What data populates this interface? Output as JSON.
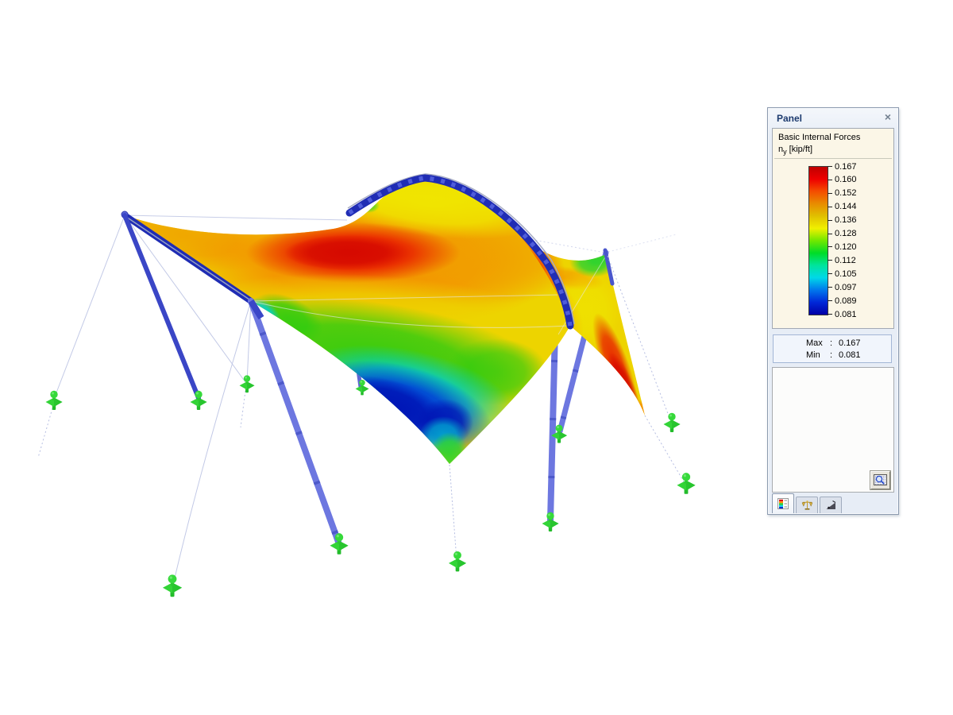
{
  "panel": {
    "title": "Panel",
    "close_icon": "×",
    "section": {
      "title": "Basic Internal Forces",
      "quantity": "n",
      "quantity_sub": "y",
      "unit": " [kip/ft]"
    },
    "legend": {
      "tick_values": [
        "0.167",
        "0.160",
        "0.152",
        "0.144",
        "0.136",
        "0.128",
        "0.120",
        "0.112",
        "0.105",
        "0.097",
        "0.089",
        "0.081"
      ],
      "gradient_stops": [
        "#C00000",
        "#EE0000",
        "#F44E00",
        "#E88C00",
        "#E0C000",
        "#F0F000",
        "#70E800",
        "#00DC28",
        "#00E49C",
        "#00D8E8",
        "#0078EC",
        "#0028D8",
        "#0000A6"
      ]
    },
    "stats": {
      "max_label": "Max",
      "min_label": "Min",
      "separator": ":",
      "max_value": "0.167",
      "min_value": "0.081"
    },
    "tabs": [
      {
        "icon": "color-spectrum-icon",
        "active": true
      },
      {
        "icon": "scales-icon",
        "active": false
      },
      {
        "icon": "filter-ramp-icon",
        "active": false
      }
    ],
    "settings_button_icon": "magnifier-settings-icon"
  },
  "scene": {
    "colors": {
      "mast_blue": "#6D77E0",
      "mast_dark_blue": "#3A46C6",
      "arch_navy": "#202DB4",
      "support_green": "#33D437",
      "guy_wire": "#C2C9E6",
      "membrane_red": "#E81400",
      "membrane_orange": "#F58300",
      "membrane_yellow": "#EDD400",
      "membrane_green": "#2CCB10",
      "membrane_cyan": "#00CFD8",
      "membrane_blue": "#0030D8"
    }
  }
}
